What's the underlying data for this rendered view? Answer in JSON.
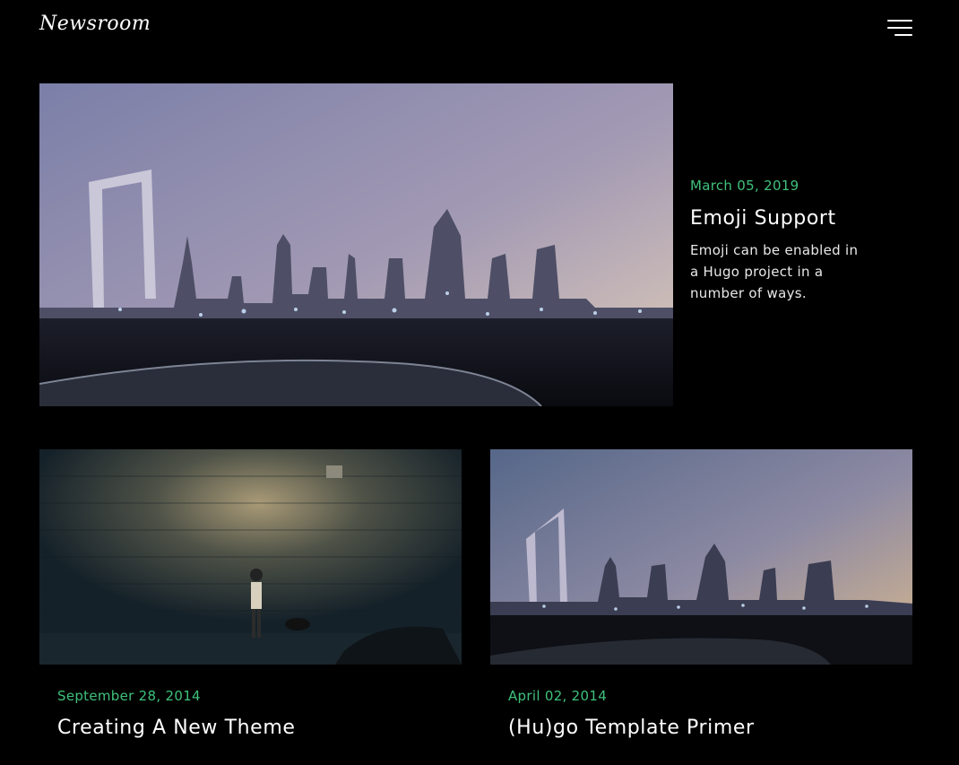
{
  "site": {
    "logo": "Newsroom",
    "menu_icon": "hamburger-menu-icon"
  },
  "featured": {
    "date": "March 05, 2019",
    "title": "Emoji Support",
    "excerpt": "Emoji can be enabled in a Hugo project in a number of ways."
  },
  "cards": [
    {
      "date": "September 28, 2014",
      "title": "Creating A New Theme"
    },
    {
      "date": "April 02, 2014",
      "title": "(Hu)go Template Primer"
    }
  ],
  "colors": {
    "background": "#000000",
    "accent_date": "#3fc17c",
    "text": "#ffffff"
  }
}
